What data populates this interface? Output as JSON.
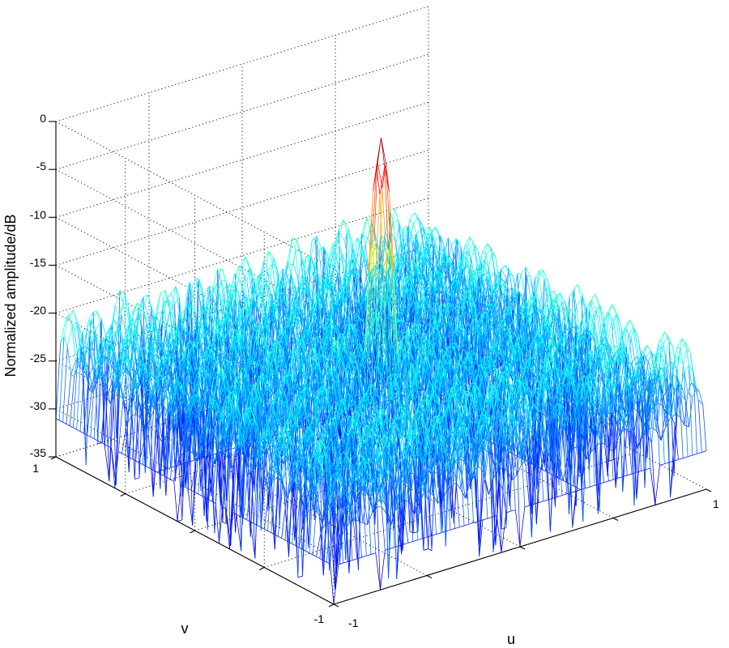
{
  "chart_data": {
    "type": "surface",
    "title": "",
    "xlabel": "u",
    "ylabel": "v",
    "zlabel": "Normalized amplitude/dB",
    "xlim": [
      -1,
      1
    ],
    "ylim": [
      -1,
      1
    ],
    "zlim": [
      -35,
      0
    ],
    "x_ticks": [
      "-1",
      "1"
    ],
    "y_ticks": [
      "1",
      "-1"
    ],
    "z_ticks": [
      "0",
      "-5",
      "-10",
      "-15",
      "-20",
      "-25",
      "-30",
      "-35"
    ],
    "grid": true,
    "colormap": "jet",
    "main_lobe": {
      "u": 0,
      "v": 0,
      "peak_db": 0,
      "beamwidth_uv": 0.07
    },
    "sidelobe_level_db": [
      -31,
      -19
    ],
    "floor_db": -35,
    "colors": {
      "main_lobe": "#c80000",
      "sidelobes": "#ffff00",
      "floor": "#00c0ff"
    }
  }
}
